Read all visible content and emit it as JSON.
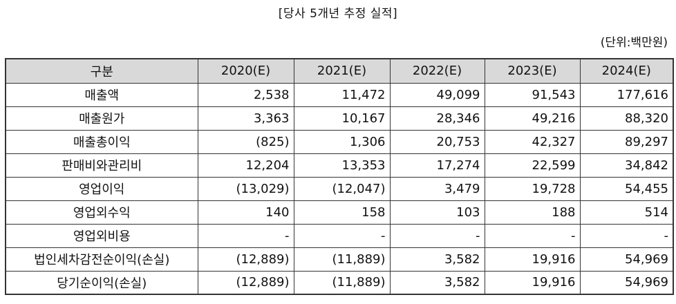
{
  "title": "[당사 5개년 추정 실적]",
  "unit": "(단위:백만원)",
  "table": {
    "headers": [
      "구분",
      "2020(E)",
      "2021(E)",
      "2022(E)",
      "2023(E)",
      "2024(E)"
    ],
    "rows": [
      {
        "label": "매출액",
        "values": [
          "2,538",
          "11,472",
          "49,099",
          "91,543",
          "177,616"
        ]
      },
      {
        "label": "매출원가",
        "values": [
          "3,363",
          "10,167",
          "28,346",
          "49,216",
          "88,320"
        ]
      },
      {
        "label": "매출총이익",
        "values": [
          "(825)",
          "1,306",
          "20,753",
          "42,327",
          "89,297"
        ]
      },
      {
        "label": "판매비와관리비",
        "values": [
          "12,204",
          "13,353",
          "17,274",
          "22,599",
          "34,842"
        ]
      },
      {
        "label": "영업이익",
        "values": [
          "(13,029)",
          "(12,047)",
          "3,479",
          "19,728",
          "54,455"
        ]
      },
      {
        "label": "영업외수익",
        "values": [
          "140",
          "158",
          "103",
          "188",
          "514"
        ]
      },
      {
        "label": "영업외비용",
        "values": [
          "-",
          "-",
          "-",
          "-",
          "-"
        ]
      },
      {
        "label": "법인세차감전순이익(손실)",
        "values": [
          "(12,889)",
          "(11,889)",
          "3,582",
          "19,916",
          "54,969"
        ]
      },
      {
        "label": "당기순이익(손실)",
        "values": [
          "(12,889)",
          "(11,889)",
          "3,582",
          "19,916",
          "54,969"
        ]
      }
    ]
  }
}
